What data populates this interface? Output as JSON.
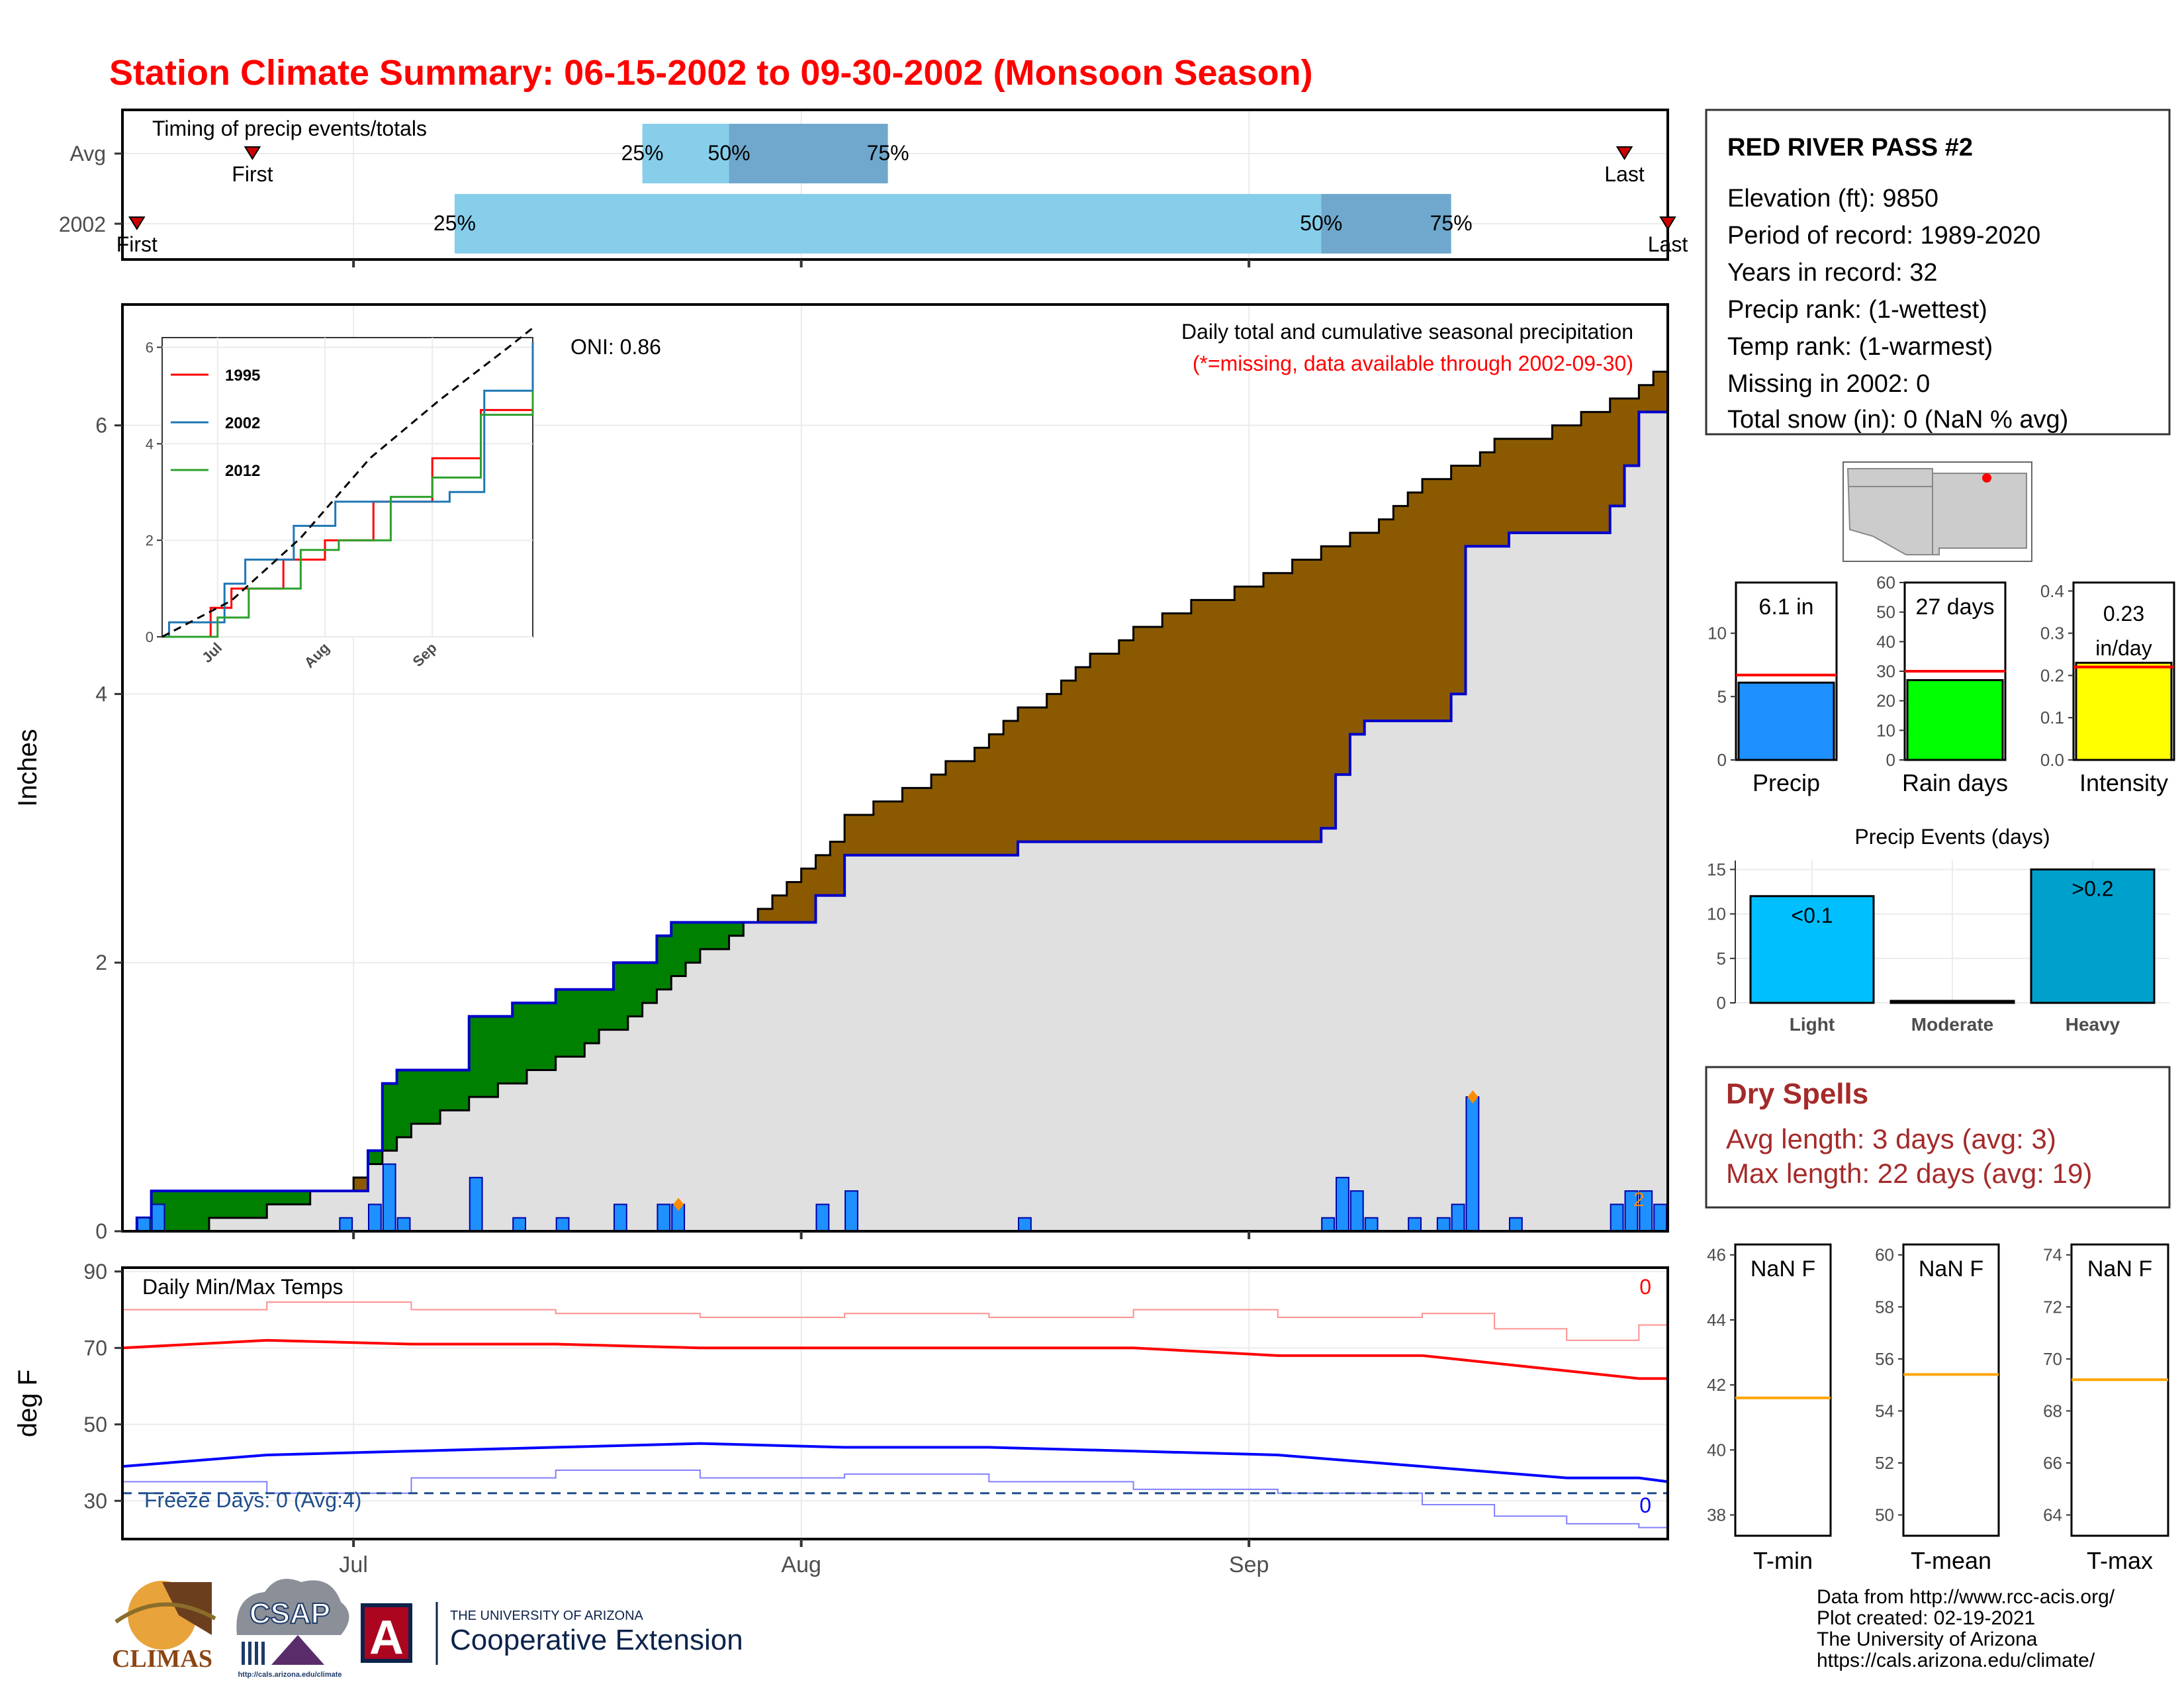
{
  "title": "Station Climate Summary: 06-15-2002 to 09-30-2002 (Monsoon Season)",
  "colors": {
    "title": "#ff0000",
    "light_quartile": "#87ceeb",
    "mid_quartile": "#6fa8cc",
    "surplus": "#8b5a00",
    "deficit": "#008000",
    "plot_bg": "#e0e0e0",
    "obs_line": "#0000cc",
    "daily_bar": "#1e90ff",
    "marker": "#ff8c00",
    "tmax": "#ff0000",
    "tmin": "#0000ff",
    "freeze": "#1f4e8c",
    "precip_bar": "#1e90ff",
    "raindays_bar": "#00ff00",
    "intensity_bar": "#ffff00",
    "light_bar": "#00bfff",
    "heavy_bar": "#00a0cc",
    "avg_line": "#ff0000",
    "norm_line": "#ffa500",
    "dry_text": "#a52a2a"
  },
  "timing": {
    "caption": "Timing of precip events/totals",
    "rows": [
      "Avg",
      "2002"
    ],
    "avg": {
      "first": "First",
      "last": "Last",
      "q25": "25%",
      "q50": "50%",
      "q75": "75%",
      "first_date": "2002-06-24",
      "q25_date": "2002-07-21",
      "q50_date": "2002-07-27",
      "q75_date": "2002-08-07",
      "last_date": "2002-09-27"
    },
    "y2002": {
      "first": "First",
      "last": "Last",
      "q25": "25%",
      "q50": "50%",
      "q75": "75%",
      "first_date": "2002-06-16",
      "q25_date": "2002-07-08",
      "q50_date": "2002-09-06",
      "q75_date": "2002-09-15",
      "last_date": "2002-09-30"
    }
  },
  "main": {
    "ylabel": "Inches",
    "caption1": "Daily total and cumulative seasonal precipitation",
    "caption2": "(*=missing, data available through 2002-09-30)",
    "oni": "ONI: 0.86",
    "yticks": [
      "0",
      "2",
      "4",
      "6"
    ],
    "xticks": [
      "Jul",
      "Aug",
      "Sep"
    ],
    "last_bar_label": "2"
  },
  "inset": {
    "yticks": [
      "0",
      "2",
      "4",
      "6"
    ],
    "xticks": [
      "Jul",
      "Aug",
      "Sep"
    ],
    "legend": [
      "1995",
      "2002",
      "2012"
    ],
    "series_colors": [
      "#ff0000",
      "#1f77b4",
      "#2ca02c"
    ]
  },
  "temps": {
    "caption": "Daily Min/Max Temps",
    "ylabel": "deg F",
    "yticks": [
      "30",
      "50",
      "70",
      "90"
    ],
    "xticks": [
      "Jul",
      "Aug",
      "Sep"
    ],
    "freeze_text": "Freeze Days: 0 (Avg:4)",
    "max_count": "0",
    "min_count": "0"
  },
  "station": {
    "name": "RED RIVER PASS #2",
    "lines": [
      "Elevation (ft): 9850",
      "Period of record: 1989-2020",
      "Years in record: 32",
      "Precip rank:  (1-wettest)",
      "Temp rank:  (1-warmest)",
      "Missing in 2002: 0",
      "Total snow (in): 0 (NaN % avg)"
    ]
  },
  "mini_bars": [
    {
      "label": "Precip",
      "value_text": "6.1 in",
      "value": 6.1,
      "avg": 6.7,
      "ymax": 14,
      "yticks": [
        "0",
        "5",
        "10"
      ]
    },
    {
      "label": "Rain days",
      "value_text": "27 days",
      "value": 27,
      "avg": 30,
      "ymax": 60,
      "yticks": [
        "0",
        "10",
        "20",
        "30",
        "40",
        "50",
        "60"
      ]
    },
    {
      "label": "Intensity",
      "value_text_1": "0.23",
      "value_text_2": "in/day",
      "value": 0.23,
      "avg": 0.22,
      "ymax": 0.42,
      "yticks": [
        "0.0",
        "0.1",
        "0.2",
        "0.3",
        "0.4"
      ]
    }
  ],
  "events": {
    "title": "Precip Events (days)",
    "categories": [
      "Light",
      "Moderate",
      "Heavy"
    ],
    "values": [
      12,
      0,
      15
    ],
    "bar_labels": [
      "<0.1",
      "",
      ">0.2"
    ],
    "yticks": [
      "0",
      "5",
      "10",
      "15"
    ]
  },
  "dry": {
    "title": "Dry Spells",
    "avg_line": "Avg length: 3 days (avg: 3)",
    "max_line": "Max length: 22 days (avg: 19)"
  },
  "temp_boxes": [
    {
      "label": "T-min",
      "value": "NaN F",
      "yticks": [
        "38",
        "40",
        "42",
        "44",
        "46"
      ],
      "norm": 41.6
    },
    {
      "label": "T-mean",
      "value": "NaN F",
      "yticks": [
        "50",
        "52",
        "54",
        "56",
        "58",
        "60"
      ],
      "norm": 55.4
    },
    {
      "label": "T-max",
      "value": "NaN F",
      "yticks": [
        "64",
        "66",
        "68",
        "70",
        "72",
        "74"
      ],
      "norm": 69.2
    }
  ],
  "credits": [
    "Data from http://www.rcc-acis.org/",
    "Plot created: 02-19-2021",
    "The University of Arizona",
    "https://cals.arizona.edu/climate/"
  ],
  "logos": {
    "climas": "CLIMAS",
    "csap": "CSAP",
    "csap_url": "http://cals.arizona.edu/climate",
    "ua_top": "THE UNIVERSITY OF ARIZONA",
    "ua_bottom": "Cooperative Extension",
    "ua_letter": "A"
  },
  "chart_data": [
    {
      "type": "area",
      "title": "Daily total and cumulative seasonal precipitation",
      "ylabel": "Inches",
      "xlim": [
        "2002-06-15",
        "2002-09-30"
      ],
      "ylim": [
        0,
        6.9
      ],
      "daily_2002": [
        {
          "x": "2002-06-16",
          "y": 0.1
        },
        {
          "x": "2002-06-17",
          "y": 0.2
        },
        {
          "x": "2002-06-20",
          "y": 0.0
        },
        {
          "x": "2002-06-30",
          "y": 0.1
        },
        {
          "x": "2002-07-02",
          "y": 0.2
        },
        {
          "x": "2002-07-03",
          "y": 0.5
        },
        {
          "x": "2002-07-04",
          "y": 0.1
        },
        {
          "x": "2002-07-09",
          "y": 0.4
        },
        {
          "x": "2002-07-12",
          "y": 0.1
        },
        {
          "x": "2002-07-15",
          "y": 0.1
        },
        {
          "x": "2002-07-19",
          "y": 0.2
        },
        {
          "x": "2002-07-22",
          "y": 0.2
        },
        {
          "x": "2002-07-23",
          "y": 0.2
        },
        {
          "x": "2002-08-02",
          "y": 0.2
        },
        {
          "x": "2002-08-04",
          "y": 0.3
        },
        {
          "x": "2002-08-16",
          "y": 0.1
        },
        {
          "x": "2002-09-06",
          "y": 0.1
        },
        {
          "x": "2002-09-07",
          "y": 0.4
        },
        {
          "x": "2002-09-08",
          "y": 0.3
        },
        {
          "x": "2002-09-09",
          "y": 0.1
        },
        {
          "x": "2002-09-12",
          "y": 0.1
        },
        {
          "x": "2002-09-14",
          "y": 0.1
        },
        {
          "x": "2002-09-15",
          "y": 0.2
        },
        {
          "x": "2002-09-16",
          "y": 1.0
        },
        {
          "x": "2002-09-19",
          "y": 0.1
        },
        {
          "x": "2002-09-26",
          "y": 0.2
        },
        {
          "x": "2002-09-27",
          "y": 0.3
        },
        {
          "x": "2002-09-28",
          "y": 0.3
        },
        {
          "x": "2002-09-29",
          "y": 0.2
        }
      ],
      "cumulative_2002": [
        {
          "x": "2002-06-15",
          "y": 0
        },
        {
          "x": "2002-06-16",
          "y": 0.1
        },
        {
          "x": "2002-06-17",
          "y": 0.3
        },
        {
          "x": "2002-07-02",
          "y": 0.6
        },
        {
          "x": "2002-07-03",
          "y": 1.1
        },
        {
          "x": "2002-07-04",
          "y": 1.2
        },
        {
          "x": "2002-07-09",
          "y": 1.6
        },
        {
          "x": "2002-07-12",
          "y": 1.7
        },
        {
          "x": "2002-07-15",
          "y": 1.8
        },
        {
          "x": "2002-07-19",
          "y": 2.0
        },
        {
          "x": "2002-07-22",
          "y": 2.2
        },
        {
          "x": "2002-07-23",
          "y": 2.3
        },
        {
          "x": "2002-08-02",
          "y": 2.5
        },
        {
          "x": "2002-08-04",
          "y": 2.8
        },
        {
          "x": "2002-08-16",
          "y": 2.9
        },
        {
          "x": "2002-09-06",
          "y": 3.0
        },
        {
          "x": "2002-09-07",
          "y": 3.4
        },
        {
          "x": "2002-09-08",
          "y": 3.7
        },
        {
          "x": "2002-09-09",
          "y": 3.8
        },
        {
          "x": "2002-09-15",
          "y": 4.0
        },
        {
          "x": "2002-09-16",
          "y": 5.1
        },
        {
          "x": "2002-09-19",
          "y": 5.2
        },
        {
          "x": "2002-09-26",
          "y": 5.4
        },
        {
          "x": "2002-09-27",
          "y": 5.7
        },
        {
          "x": "2002-09-28",
          "y": 6.1
        },
        {
          "x": "2002-09-30",
          "y": 6.1
        }
      ],
      "cumulative_avg": [
        {
          "x": "2002-06-15",
          "y": 0
        },
        {
          "x": "2002-06-20",
          "y": 0.03
        },
        {
          "x": "2002-06-25",
          "y": 0.15
        },
        {
          "x": "2002-06-30",
          "y": 0.33
        },
        {
          "x": "2002-07-05",
          "y": 0.75
        },
        {
          "x": "2002-07-10",
          "y": 1.0
        },
        {
          "x": "2002-07-15",
          "y": 1.25
        },
        {
          "x": "2002-07-20",
          "y": 1.6
        },
        {
          "x": "2002-07-25",
          "y": 2.05
        },
        {
          "x": "2002-07-30",
          "y": 2.5
        },
        {
          "x": "2002-08-04",
          "y": 3.05
        },
        {
          "x": "2002-08-09",
          "y": 3.3
        },
        {
          "x": "2002-08-14",
          "y": 3.7
        },
        {
          "x": "2002-08-19",
          "y": 4.1
        },
        {
          "x": "2002-08-24",
          "y": 4.5
        },
        {
          "x": "2002-08-29",
          "y": 4.7
        },
        {
          "x": "2002-09-03",
          "y": 4.9
        },
        {
          "x": "2002-09-08",
          "y": 5.15
        },
        {
          "x": "2002-09-13",
          "y": 5.55
        },
        {
          "x": "2002-09-18",
          "y": 5.85
        },
        {
          "x": "2002-09-23",
          "y": 6.0
        },
        {
          "x": "2002-09-28",
          "y": 6.3
        },
        {
          "x": "2002-09-30",
          "y": 6.4
        }
      ]
    },
    {
      "type": "line",
      "subplot": "inset",
      "ylim": [
        0,
        6.2
      ],
      "legend": [
        "1995",
        "2002",
        "2012"
      ],
      "series": [
        {
          "name": "1995",
          "values": [
            {
              "x": "2002-06-15",
              "y": 0
            },
            {
              "x": "2002-06-29",
              "y": 0.6
            },
            {
              "x": "2002-07-05",
              "y": 1.0
            },
            {
              "x": "2002-07-20",
              "y": 1.6
            },
            {
              "x": "2002-08-01",
              "y": 2.0
            },
            {
              "x": "2002-08-15",
              "y": 2.8
            },
            {
              "x": "2002-09-01",
              "y": 3.7
            },
            {
              "x": "2002-09-15",
              "y": 4.7
            },
            {
              "x": "2002-09-30",
              "y": 6.1
            }
          ]
        },
        {
          "name": "2002",
          "values": [
            {
              "x": "2002-06-15",
              "y": 0
            },
            {
              "x": "2002-06-17",
              "y": 0.3
            },
            {
              "x": "2002-07-03",
              "y": 1.1
            },
            {
              "x": "2002-07-09",
              "y": 1.6
            },
            {
              "x": "2002-07-23",
              "y": 2.3
            },
            {
              "x": "2002-08-04",
              "y": 2.8
            },
            {
              "x": "2002-09-06",
              "y": 3.0
            },
            {
              "x": "2002-09-16",
              "y": 5.1
            },
            {
              "x": "2002-09-30",
              "y": 6.1
            }
          ]
        },
        {
          "name": "2012",
          "values": [
            {
              "x": "2002-06-15",
              "y": 0
            },
            {
              "x": "2002-07-01",
              "y": 0.4
            },
            {
              "x": "2002-07-10",
              "y": 1.0
            },
            {
              "x": "2002-07-25",
              "y": 1.8
            },
            {
              "x": "2002-08-05",
              "y": 2.0
            },
            {
              "x": "2002-08-20",
              "y": 2.9
            },
            {
              "x": "2002-09-01",
              "y": 3.3
            },
            {
              "x": "2002-09-15",
              "y": 4.6
            },
            {
              "x": "2002-09-30",
              "y": 5.1
            }
          ]
        },
        {
          "name": "avg",
          "values": [
            {
              "x": "2002-06-15",
              "y": 0
            },
            {
              "x": "2002-07-05",
              "y": 0.75
            },
            {
              "x": "2002-07-25",
              "y": 2.05
            },
            {
              "x": "2002-08-14",
              "y": 3.7
            },
            {
              "x": "2002-09-03",
              "y": 4.9
            },
            {
              "x": "2002-09-23",
              "y": 6.0
            },
            {
              "x": "2002-09-30",
              "y": 6.4
            }
          ]
        }
      ]
    },
    {
      "type": "line",
      "subplot": "temperatures",
      "ylim": [
        20,
        91
      ],
      "ylabel": "deg F",
      "series": [
        {
          "name": "tmax_avg",
          "values": [
            [
              0,
              70
            ],
            [
              10,
              72
            ],
            [
              20,
              71
            ],
            [
              30,
              71
            ],
            [
              40,
              70
            ],
            [
              50,
              70
            ],
            [
              60,
              70
            ],
            [
              70,
              70
            ],
            [
              80,
              68
            ],
            [
              90,
              68
            ],
            [
              95,
              66
            ],
            [
              100,
              64
            ],
            [
              105,
              62
            ],
            [
              107,
              62
            ]
          ]
        },
        {
          "name": "tmin_avg",
          "values": [
            [
              0,
              39
            ],
            [
              10,
              42
            ],
            [
              20,
              43
            ],
            [
              30,
              44
            ],
            [
              40,
              45
            ],
            [
              50,
              44
            ],
            [
              60,
              44
            ],
            [
              70,
              43
            ],
            [
              80,
              42
            ],
            [
              90,
              39
            ],
            [
              100,
              36
            ],
            [
              105,
              36
            ],
            [
              107,
              35
            ]
          ]
        },
        {
          "name": "tmax_2002",
          "values": [
            [
              0,
              80
            ],
            [
              10,
              82
            ],
            [
              20,
              80
            ],
            [
              30,
              79
            ],
            [
              40,
              78
            ],
            [
              50,
              79
            ],
            [
              60,
              78
            ],
            [
              70,
              80
            ],
            [
              80,
              78
            ],
            [
              90,
              79
            ],
            [
              95,
              75
            ],
            [
              100,
              72
            ],
            [
              105,
              76
            ],
            [
              107,
              74
            ]
          ]
        },
        {
          "name": "tmin_2002",
          "values": [
            [
              0,
              35
            ],
            [
              10,
              32
            ],
            [
              20,
              36
            ],
            [
              30,
              38
            ],
            [
              40,
              36
            ],
            [
              50,
              37
            ],
            [
              60,
              35
            ],
            [
              70,
              33
            ],
            [
              80,
              32
            ],
            [
              90,
              29
            ],
            [
              95,
              26
            ],
            [
              100,
              24
            ],
            [
              105,
              23
            ],
            [
              107,
              25
            ]
          ]
        }
      ],
      "freeze_line": 32
    },
    {
      "type": "bar",
      "subplot": "precip-events",
      "categories": [
        "Light",
        "Moderate",
        "Heavy"
      ],
      "values": [
        12,
        0,
        15
      ],
      "ylim": [
        0,
        16
      ]
    }
  ]
}
